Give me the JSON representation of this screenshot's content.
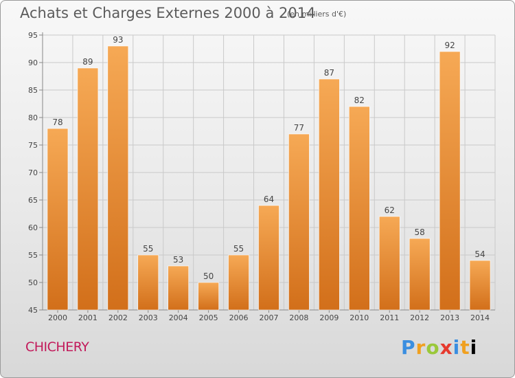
{
  "header": {
    "title": "Achats et Charges Externes 2000 à 2014",
    "subtitle": "(en milliers d'€)"
  },
  "footer": {
    "commune": "CHICHERY",
    "logo_letters": [
      "P",
      "r",
      "o",
      "x",
      "i",
      "t",
      "i"
    ]
  },
  "colors": {
    "bar_top": "#f6a955",
    "bar_bottom": "#d26f1a",
    "commune_text": "#c2195a"
  },
  "chart_data": {
    "type": "bar",
    "categories": [
      "2000",
      "2001",
      "2002",
      "2003",
      "2004",
      "2005",
      "2006",
      "2007",
      "2008",
      "2009",
      "2010",
      "2011",
      "2012",
      "2013",
      "2014"
    ],
    "values": [
      78,
      89,
      93,
      55,
      53,
      50,
      55,
      64,
      77,
      87,
      82,
      62,
      58,
      92,
      54
    ],
    "title": "Achats et Charges Externes 2000 à 2014",
    "ylim": [
      45,
      95
    ],
    "yticks": [
      45,
      50,
      55,
      60,
      65,
      70,
      75,
      80,
      85,
      90,
      95
    ],
    "grid": true,
    "legend": "none"
  }
}
